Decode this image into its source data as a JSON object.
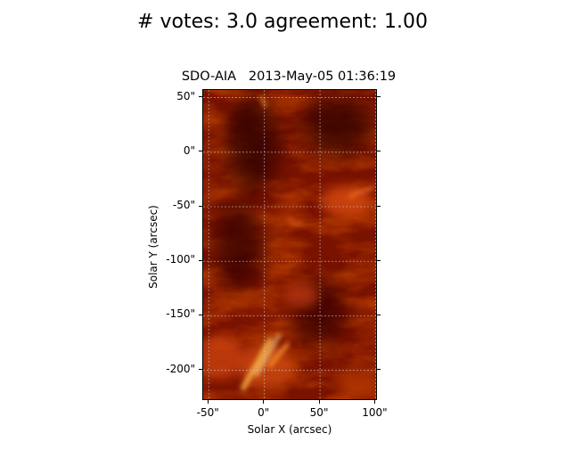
{
  "figure": {
    "suptitle": "# votes: 3.0 agreement: 1.00"
  },
  "image_plot": {
    "title": "SDO-AIA   2013-May-05 01:36:19",
    "xlabel": "Solar X (arcsec)",
    "ylabel": "Solar Y (arcsec)",
    "x_range": [
      -55,
      102
    ],
    "y_range": [
      -228,
      57
    ],
    "x_ticks": [
      {
        "value": -50,
        "label": "-50\""
      },
      {
        "value": 0,
        "label": "0\""
      },
      {
        "value": 50,
        "label": "50\""
      },
      {
        "value": 100,
        "label": "100\""
      }
    ],
    "y_ticks": [
      {
        "value": 50,
        "label": "50\""
      },
      {
        "value": 0,
        "label": "0\""
      },
      {
        "value": -50,
        "label": "-50\""
      },
      {
        "value": -100,
        "label": "-100\""
      },
      {
        "value": -150,
        "label": "-150\""
      },
      {
        "value": -200,
        "label": "-200\""
      }
    ],
    "colormap_colors": [
      "#1a0000",
      "#5c0a00",
      "#a51c00",
      "#e04a05",
      "#ffae3a",
      "#fff6c8"
    ],
    "grid_color": "#c8c8c8"
  }
}
